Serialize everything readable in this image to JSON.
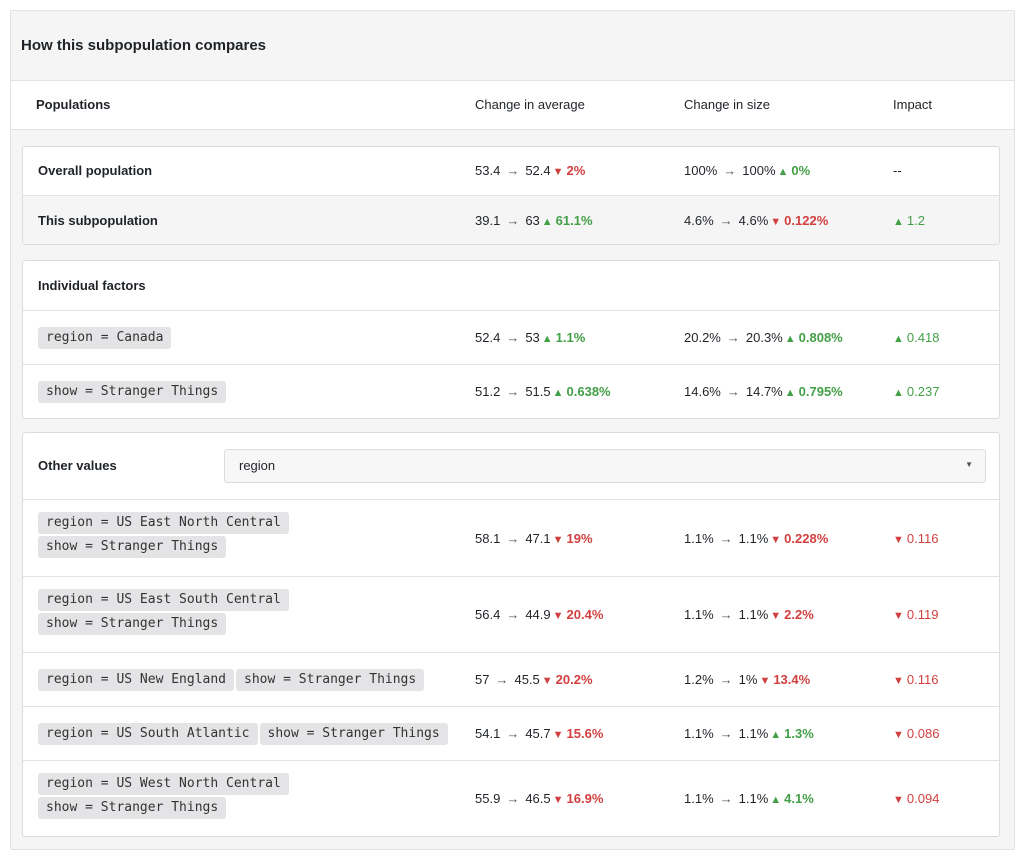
{
  "title": "How this subpopulation compares",
  "headers": {
    "populations": "Populations",
    "avg": "Change in average",
    "size": "Change in size",
    "impact": "Impact"
  },
  "summary": [
    {
      "label": "Overall population",
      "avg": {
        "from": "53.4",
        "to": "52.4",
        "dir": "down",
        "delta": "2%"
      },
      "size": {
        "from": "100%",
        "to": "100%",
        "dir": "up",
        "delta": "0%"
      },
      "impact": {
        "dir": "",
        "value": "--"
      }
    },
    {
      "label": "This subpopulation",
      "avg": {
        "from": "39.1",
        "to": "63",
        "dir": "up",
        "delta": "61.1%"
      },
      "size": {
        "from": "4.6%",
        "to": "4.6%",
        "dir": "down",
        "delta": "0.122%"
      },
      "impact": {
        "dir": "up",
        "value": "1.2"
      }
    }
  ],
  "individual": {
    "title": "Individual factors",
    "rows": [
      {
        "chips": [
          "region = Canada"
        ],
        "avg": {
          "from": "52.4",
          "to": "53",
          "dir": "up",
          "delta": "1.1%"
        },
        "size": {
          "from": "20.2%",
          "to": "20.3%",
          "dir": "up",
          "delta": "0.808%"
        },
        "impact": {
          "dir": "up",
          "value": "0.418"
        }
      },
      {
        "chips": [
          "show = Stranger Things"
        ],
        "avg": {
          "from": "51.2",
          "to": "51.5",
          "dir": "up",
          "delta": "0.638%"
        },
        "size": {
          "from": "14.6%",
          "to": "14.7%",
          "dir": "up",
          "delta": "0.795%"
        },
        "impact": {
          "dir": "up",
          "value": "0.237"
        }
      }
    ]
  },
  "other": {
    "title": "Other values",
    "select_value": "region",
    "rows": [
      {
        "chips": [
          "region = US East North Central",
          "show = Stranger Things"
        ],
        "avg": {
          "from": "58.1",
          "to": "47.1",
          "dir": "down",
          "delta": "19%"
        },
        "size": {
          "from": "1.1%",
          "to": "1.1%",
          "dir": "down",
          "delta": "0.228%"
        },
        "impact": {
          "dir": "down",
          "value": "0.116"
        }
      },
      {
        "chips": [
          "region = US East South Central",
          "show = Stranger Things"
        ],
        "avg": {
          "from": "56.4",
          "to": "44.9",
          "dir": "down",
          "delta": "20.4%"
        },
        "size": {
          "from": "1.1%",
          "to": "1.1%",
          "dir": "down",
          "delta": "2.2%"
        },
        "impact": {
          "dir": "down",
          "value": "0.119"
        }
      },
      {
        "chips": [
          "region = US New England",
          "show = Stranger Things"
        ],
        "avg": {
          "from": "57",
          "to": "45.5",
          "dir": "down",
          "delta": "20.2%"
        },
        "size": {
          "from": "1.2%",
          "to": "1%",
          "dir": "down",
          "delta": "13.4%"
        },
        "impact": {
          "dir": "down",
          "value": "0.116"
        }
      },
      {
        "chips": [
          "region = US South Atlantic",
          "show = Stranger Things"
        ],
        "avg": {
          "from": "54.1",
          "to": "45.7",
          "dir": "down",
          "delta": "15.6%"
        },
        "size": {
          "from": "1.1%",
          "to": "1.1%",
          "dir": "up",
          "delta": "1.3%"
        },
        "impact": {
          "dir": "down",
          "value": "0.086"
        }
      },
      {
        "chips": [
          "region = US West North Central",
          "show = Stranger Things"
        ],
        "avg": {
          "from": "55.9",
          "to": "46.5",
          "dir": "down",
          "delta": "16.9%"
        },
        "size": {
          "from": "1.1%",
          "to": "1.1%",
          "dir": "up",
          "delta": "4.1%"
        },
        "impact": {
          "dir": "down",
          "value": "0.094"
        }
      }
    ]
  },
  "colors": {
    "up": "#43a047",
    "down": "#d23f3f"
  }
}
